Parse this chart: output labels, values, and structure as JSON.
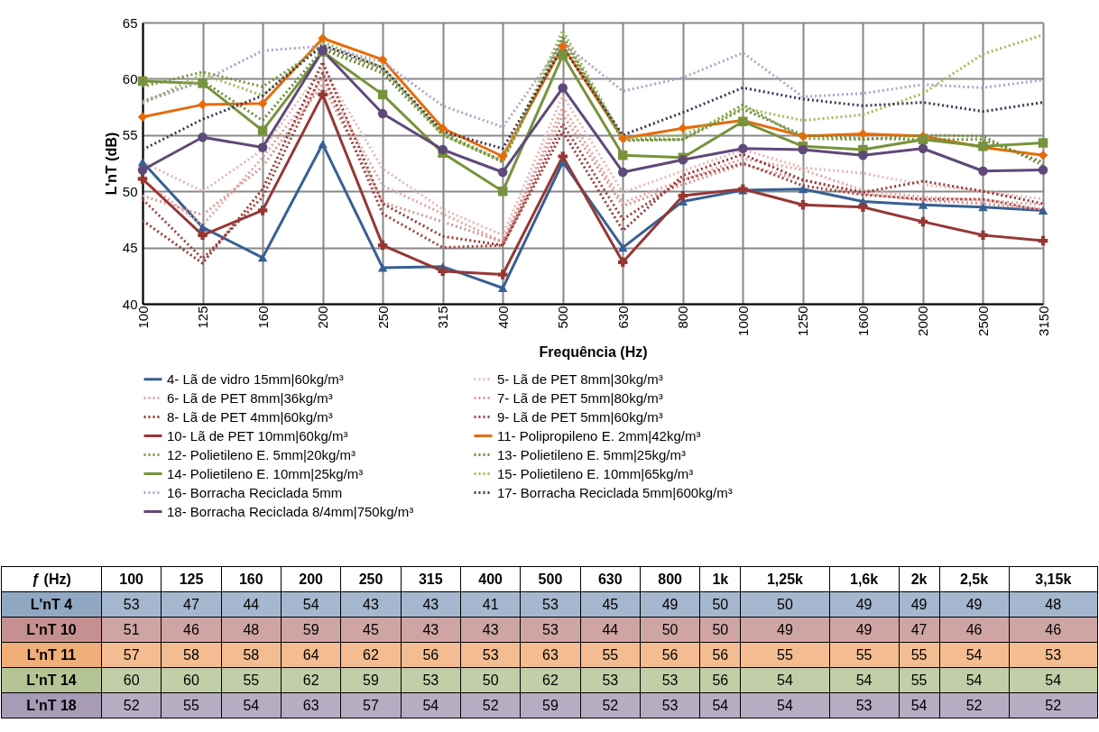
{
  "chart_data": {
    "type": "line",
    "xlabel": "Frequência (Hz)",
    "ylabel": "L'nT (dB)",
    "categories": [
      "100",
      "125",
      "160",
      "200",
      "250",
      "315",
      "400",
      "500",
      "630",
      "800",
      "1000",
      "1250",
      "1600",
      "2000",
      "2500",
      "3150"
    ],
    "ylim": [
      40,
      65
    ],
    "yticks": [
      40,
      45,
      50,
      55,
      60,
      65
    ],
    "grid": true,
    "legend": "bottom",
    "annotations": [
      "ƒ (Hz)",
      "100",
      "125",
      "160",
      "200",
      "250",
      "315",
      "400",
      "500",
      "630",
      "800",
      "1k",
      "1,25k",
      "1,6k",
      "2k",
      "2,5k",
      "3,15k",
      "L'nT 4",
      "L'nT 10",
      "L'nT 11",
      "L'nT 14",
      "L'nT 18"
    ],
    "series": [
      {
        "name": "4- Lã de vidro 15mm|60kg/m³",
        "color": "#376092",
        "marker": "triangle",
        "line_style": "solid",
        "values": [
          52.6,
          46.8,
          44.1,
          54.2,
          43.2,
          43.3,
          41.4,
          52.6,
          45.0,
          49.1,
          50.1,
          50.2,
          49.1,
          48.8,
          48.6,
          48.3
        ],
        "value_labels": [
          "53",
          "47",
          "44",
          "54",
          "43",
          "43",
          "41",
          "53",
          "45",
          "49",
          "50",
          "50",
          "49",
          "49",
          "49",
          "48"
        ]
      },
      {
        "name": "5- Lã de PET 8mm|30kg/m³",
        "color": "#e6b9b8",
        "marker": "none",
        "line_style": "dotted",
        "values": [
          52.6,
          50.0,
          53.7,
          61.0,
          52.0,
          48.4,
          46.1,
          58.5,
          49.9,
          51.8,
          53.7,
          52.1,
          51.6,
          50.6,
          50.0,
          49.3
        ]
      },
      {
        "name": "6- Lã de PET 8mm|36kg/m³",
        "color": "#e6a5a5",
        "marker": "none",
        "line_style": "dotted",
        "values": [
          51.0,
          47.0,
          53.0,
          60.0,
          50.5,
          48.0,
          45.5,
          57.5,
          49.0,
          51.0,
          52.9,
          51.9,
          50.1,
          49.5,
          49.2,
          48.8
        ]
      },
      {
        "name": "7- Lã de PET 5mm|80kg/m³",
        "color": "#d99694",
        "marker": "none",
        "line_style": "dotted",
        "values": [
          49.6,
          47.9,
          52.2,
          59.5,
          49.0,
          47.3,
          45.5,
          56.8,
          48.7,
          50.6,
          52.4,
          51.0,
          49.8,
          49.2,
          48.9,
          48.4
        ]
      },
      {
        "name": "8- Lã de PET 4mm|60kg/m³",
        "color": "#953735",
        "marker": "none",
        "line_style": "dotted",
        "values": [
          47.4,
          43.6,
          50.2,
          61.5,
          48.9,
          46.0,
          45.2,
          55.3,
          46.5,
          51.4,
          53.3,
          51.0,
          49.9,
          50.9,
          50.0,
          48.9
        ]
      },
      {
        "name": "9- Lã de PET 5mm|60kg/m³",
        "color": "#a0403e",
        "marker": "none",
        "line_style": "dotted",
        "values": [
          49.3,
          44.0,
          49.5,
          60.5,
          48.0,
          45.0,
          45.2,
          56.0,
          47.5,
          51.0,
          52.5,
          50.5,
          49.7,
          49.3,
          49.3,
          48.3
        ]
      },
      {
        "name": "10- Lã de PET 10mm|60kg/m³",
        "color": "#953735",
        "marker": "cross",
        "line_style": "solid",
        "values": [
          51.1,
          46.1,
          48.3,
          58.6,
          45.2,
          42.9,
          42.6,
          53.1,
          43.7,
          49.6,
          50.2,
          48.8,
          48.6,
          47.3,
          46.1,
          45.6
        ],
        "value_labels": [
          "51",
          "46",
          "48",
          "59",
          "45",
          "43",
          "43",
          "53",
          "44",
          "50",
          "50",
          "49",
          "49",
          "47",
          "46",
          "46"
        ]
      },
      {
        "name": "11- Polipropileno E. 2mm|42kg/m³",
        "color": "#e46c0a",
        "marker": "diamond",
        "line_style": "solid",
        "values": [
          56.6,
          57.7,
          57.8,
          63.6,
          61.7,
          55.6,
          53.1,
          62.9,
          54.7,
          55.6,
          56.3,
          54.9,
          55.1,
          54.9,
          53.9,
          53.2
        ],
        "value_labels": [
          "57",
          "58",
          "58",
          "64",
          "62",
          "56",
          "53",
          "63",
          "55",
          "56",
          "56",
          "55",
          "55",
          "55",
          "54",
          "53"
        ]
      },
      {
        "name": "12- Polietileno E. 5mm|20kg/m³",
        "color": "#77933c",
        "marker": "none",
        "line_style": "dotted",
        "values": [
          59.3,
          60.6,
          59.3,
          62.8,
          60.8,
          55.2,
          52.7,
          63.5,
          54.5,
          54.6,
          57.7,
          54.7,
          54.6,
          55.0,
          54.9,
          52.3
        ]
      },
      {
        "name": "13- Polietileno E. 5mm|25kg/m³",
        "color": "#6b8a35",
        "marker": "none",
        "line_style": "dotted",
        "values": [
          58.0,
          59.8,
          56.3,
          62.6,
          60.5,
          55.0,
          52.6,
          63.8,
          54.6,
          54.6,
          57.3,
          55.0,
          54.7,
          54.6,
          54.6,
          52.6
        ]
      },
      {
        "name": "14- Polietileno E. 10mm|25kg/m³",
        "color": "#77933c",
        "marker": "square",
        "line_style": "solid",
        "values": [
          59.8,
          59.6,
          55.4,
          62.4,
          58.6,
          53.4,
          50.0,
          62.1,
          53.2,
          53.0,
          56.2,
          54.0,
          53.7,
          54.6,
          54.0,
          54.3
        ],
        "value_labels": [
          "60",
          "60",
          "55",
          "62",
          "59",
          "53",
          "50",
          "62",
          "53",
          "53",
          "56",
          "54",
          "54",
          "55",
          "54",
          "54"
        ]
      },
      {
        "name": "15- Polietileno E. 10mm|65kg/m³",
        "color": "#9bbb59",
        "marker": "none",
        "line_style": "dotted",
        "values": [
          57.8,
          60.4,
          58.5,
          63.3,
          61.0,
          55.0,
          52.7,
          64.3,
          54.7,
          55.0,
          57.4,
          56.3,
          56.8,
          58.7,
          62.2,
          63.9
        ]
      },
      {
        "name": "16- Borracha Reciclada 5mm",
        "color": "#b3a2c7",
        "marker": "none",
        "line_style": "dotted",
        "values": [
          57.9,
          59.8,
          62.5,
          62.9,
          61.5,
          57.6,
          55.7,
          63.2,
          58.9,
          60.1,
          62.3,
          58.4,
          58.7,
          59.5,
          59.2,
          59.9
        ]
      },
      {
        "name": "17- Borracha Reciclada 5mm|600kg/m³",
        "color": "#403152",
        "marker": "none",
        "line_style": "dotted",
        "values": [
          53.7,
          56.4,
          58.5,
          63.0,
          61.0,
          55.3,
          53.8,
          62.8,
          55.0,
          57.0,
          59.2,
          58.2,
          57.6,
          57.9,
          57.1,
          57.9
        ]
      },
      {
        "name": "18- Borracha Reciclada 8/4mm|750kg/m³",
        "color": "#5f497a",
        "marker": "circle",
        "line_style": "solid",
        "values": [
          51.9,
          54.8,
          53.9,
          62.5,
          56.9,
          53.7,
          51.7,
          59.2,
          51.7,
          52.8,
          53.8,
          53.7,
          53.2,
          53.8,
          51.8,
          51.9
        ],
        "value_labels": [
          "52",
          "55",
          "54",
          "63",
          "57",
          "54",
          "52",
          "59",
          "52",
          "53",
          "54",
          "54",
          "53",
          "54",
          "52",
          "52"
        ]
      }
    ]
  }
}
